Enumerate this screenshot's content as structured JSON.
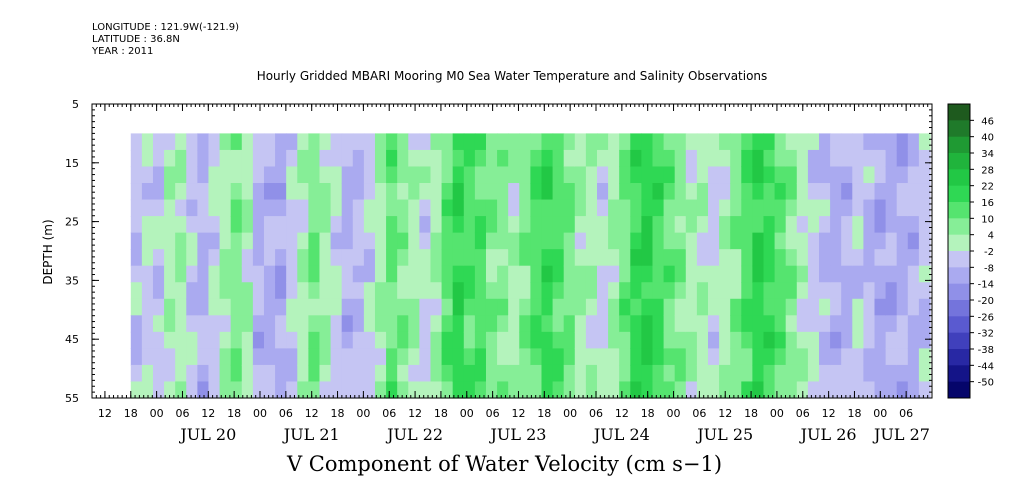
{
  "header": {
    "longitude": "LONGITUDE : 121.9W(-121.9)",
    "latitude": "LATITUDE : 36.8N",
    "year": "YEAR : 2011"
  },
  "chart_data": {
    "type": "heatmap",
    "title": "Hourly Gridded MBARI Mooring M0 Sea Water Temperature and Salinity Observations",
    "xlabel": "V Component of Water Velocity (cm s−1)",
    "ylabel": "DEPTH (m)",
    "ylim": [
      55,
      5
    ],
    "y_ticks": [
      "5",
      "15",
      "25",
      "35",
      "45",
      "55"
    ],
    "x_range": [
      "2011-07-19 09:00",
      "2011-07-27 12:00"
    ],
    "data_start": "2011-07-19 18:00",
    "data_depth_range": [
      10,
      55
    ],
    "hour_ticks": [
      "12",
      "18",
      "00",
      "06",
      "12",
      "18",
      "00",
      "06",
      "12",
      "18",
      "00",
      "06",
      "12",
      "18",
      "00",
      "06",
      "12",
      "18",
      "00",
      "06",
      "12",
      "18",
      "00",
      "06",
      "12",
      "18",
      "00",
      "06",
      "12",
      "18",
      "00",
      "06"
    ],
    "day_labels": [
      "JUL 20",
      "JUL 21",
      "JUL 22",
      "JUL 23",
      "JUL 24",
      "JUL 25",
      "JUL 26",
      "JUL 27"
    ],
    "colorbar": {
      "levels": [
        "46",
        "40",
        "34",
        "28",
        "22",
        "16",
        "10",
        "4",
        "-2",
        "-8",
        "-14",
        "-20",
        "-26",
        "-32",
        "-38",
        "-44",
        "-50"
      ],
      "colors": [
        "#1e5a1e",
        "#1f7a2a",
        "#1f9a33",
        "#20b43c",
        "#22c845",
        "#2fd854",
        "#55e46f",
        "#86ee97",
        "#b4f3bc",
        "#c5c5f3",
        "#aaaaf0",
        "#9090e8",
        "#7474dc",
        "#5a5ad0",
        "#4040bc",
        "#2828a4",
        "#141488",
        "#05056a"
      ]
    },
    "columns_v": [
      -6,
      -3,
      -6,
      2,
      4,
      -5,
      -8,
      -3,
      2,
      7,
      2,
      -8,
      -9,
      -11,
      -5,
      2,
      9,
      3,
      -4,
      -9,
      -7,
      -3,
      4,
      11,
      6,
      3,
      -2,
      3,
      12,
      19,
      15,
      13,
      9,
      6,
      3,
      7,
      13,
      18,
      14,
      10,
      4,
      1,
      -2,
      4,
      11,
      18,
      22,
      17,
      11,
      6,
      3,
      1,
      -3,
      1,
      7,
      14,
      20,
      17,
      12,
      6,
      0,
      -3,
      -7,
      -10,
      -8,
      -4,
      -7,
      -12,
      -10,
      -9,
      -8,
      -6
    ]
  }
}
